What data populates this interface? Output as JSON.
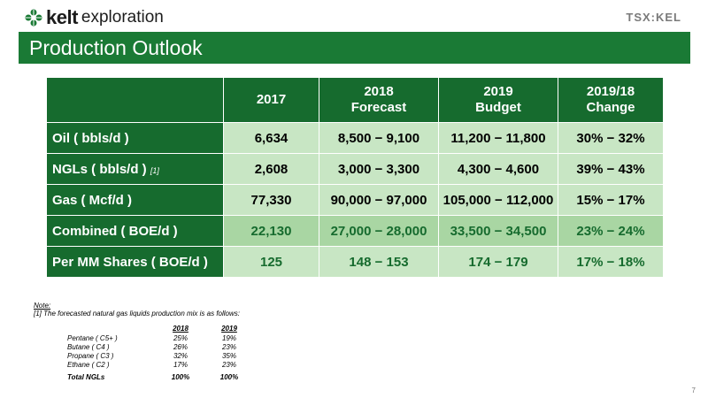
{
  "header": {
    "brand": "kelt",
    "brand_tag": "exploration",
    "ticker": "TSX:KEL",
    "title": "Production Outlook"
  },
  "table": {
    "columns": [
      "2017",
      "2018\nForecast",
      "2019\nBudget",
      "2019/18\nChange"
    ],
    "rows": [
      {
        "label": "Oil ( bbls/d )",
        "footnote": "",
        "values": [
          "6,634",
          "8,500 − 9,100",
          "11,200 − 11,800",
          "30% − 32%"
        ]
      },
      {
        "label": "NGLs ( bbls/d )",
        "footnote": "[1]",
        "values": [
          "2,608",
          "3,000 − 3,300",
          "4,300 − 4,600",
          "39% − 43%"
        ]
      },
      {
        "label": "Gas ( Mcf/d )",
        "footnote": "",
        "values": [
          "77,330",
          "90,000 − 97,000",
          "105,000 − 112,000",
          "15% − 17%"
        ]
      },
      {
        "label": "Combined ( BOE/d )",
        "footnote": "",
        "values": [
          "22,130",
          "27,000 − 28,000",
          "33,500 − 34,500",
          "23% − 24%"
        ]
      },
      {
        "label": "Per MM Shares ( BOE/d )",
        "footnote": "",
        "values": [
          "125",
          "148 − 153",
          "174 − 179",
          "17% − 18%"
        ]
      }
    ]
  },
  "notes": {
    "heading": "Note:",
    "line1": "[1] The forecasted natural gas liquids production mix is as follows:",
    "mix_headers": [
      "2018",
      "2019"
    ],
    "mix_rows": [
      {
        "name": "Pentane ( C5+ )",
        "v2018": "25%",
        "v2019": "19%"
      },
      {
        "name": "Butane ( C4 )",
        "v2018": "26%",
        "v2019": "23%"
      },
      {
        "name": "Propane ( C3 )",
        "v2018": "32%",
        "v2019": "35%"
      },
      {
        "name": "Ethane ( C2 )",
        "v2018": "17%",
        "v2019": "23%"
      }
    ],
    "total": {
      "name": "Total NGLs",
      "v2018": "100%",
      "v2019": "100%"
    }
  },
  "page_number": "7",
  "colors": {
    "brand_green": "#1a7a35",
    "header_green": "#166b2e",
    "light_green": "#c8e6c4",
    "mid_green": "#a9d6a3"
  }
}
